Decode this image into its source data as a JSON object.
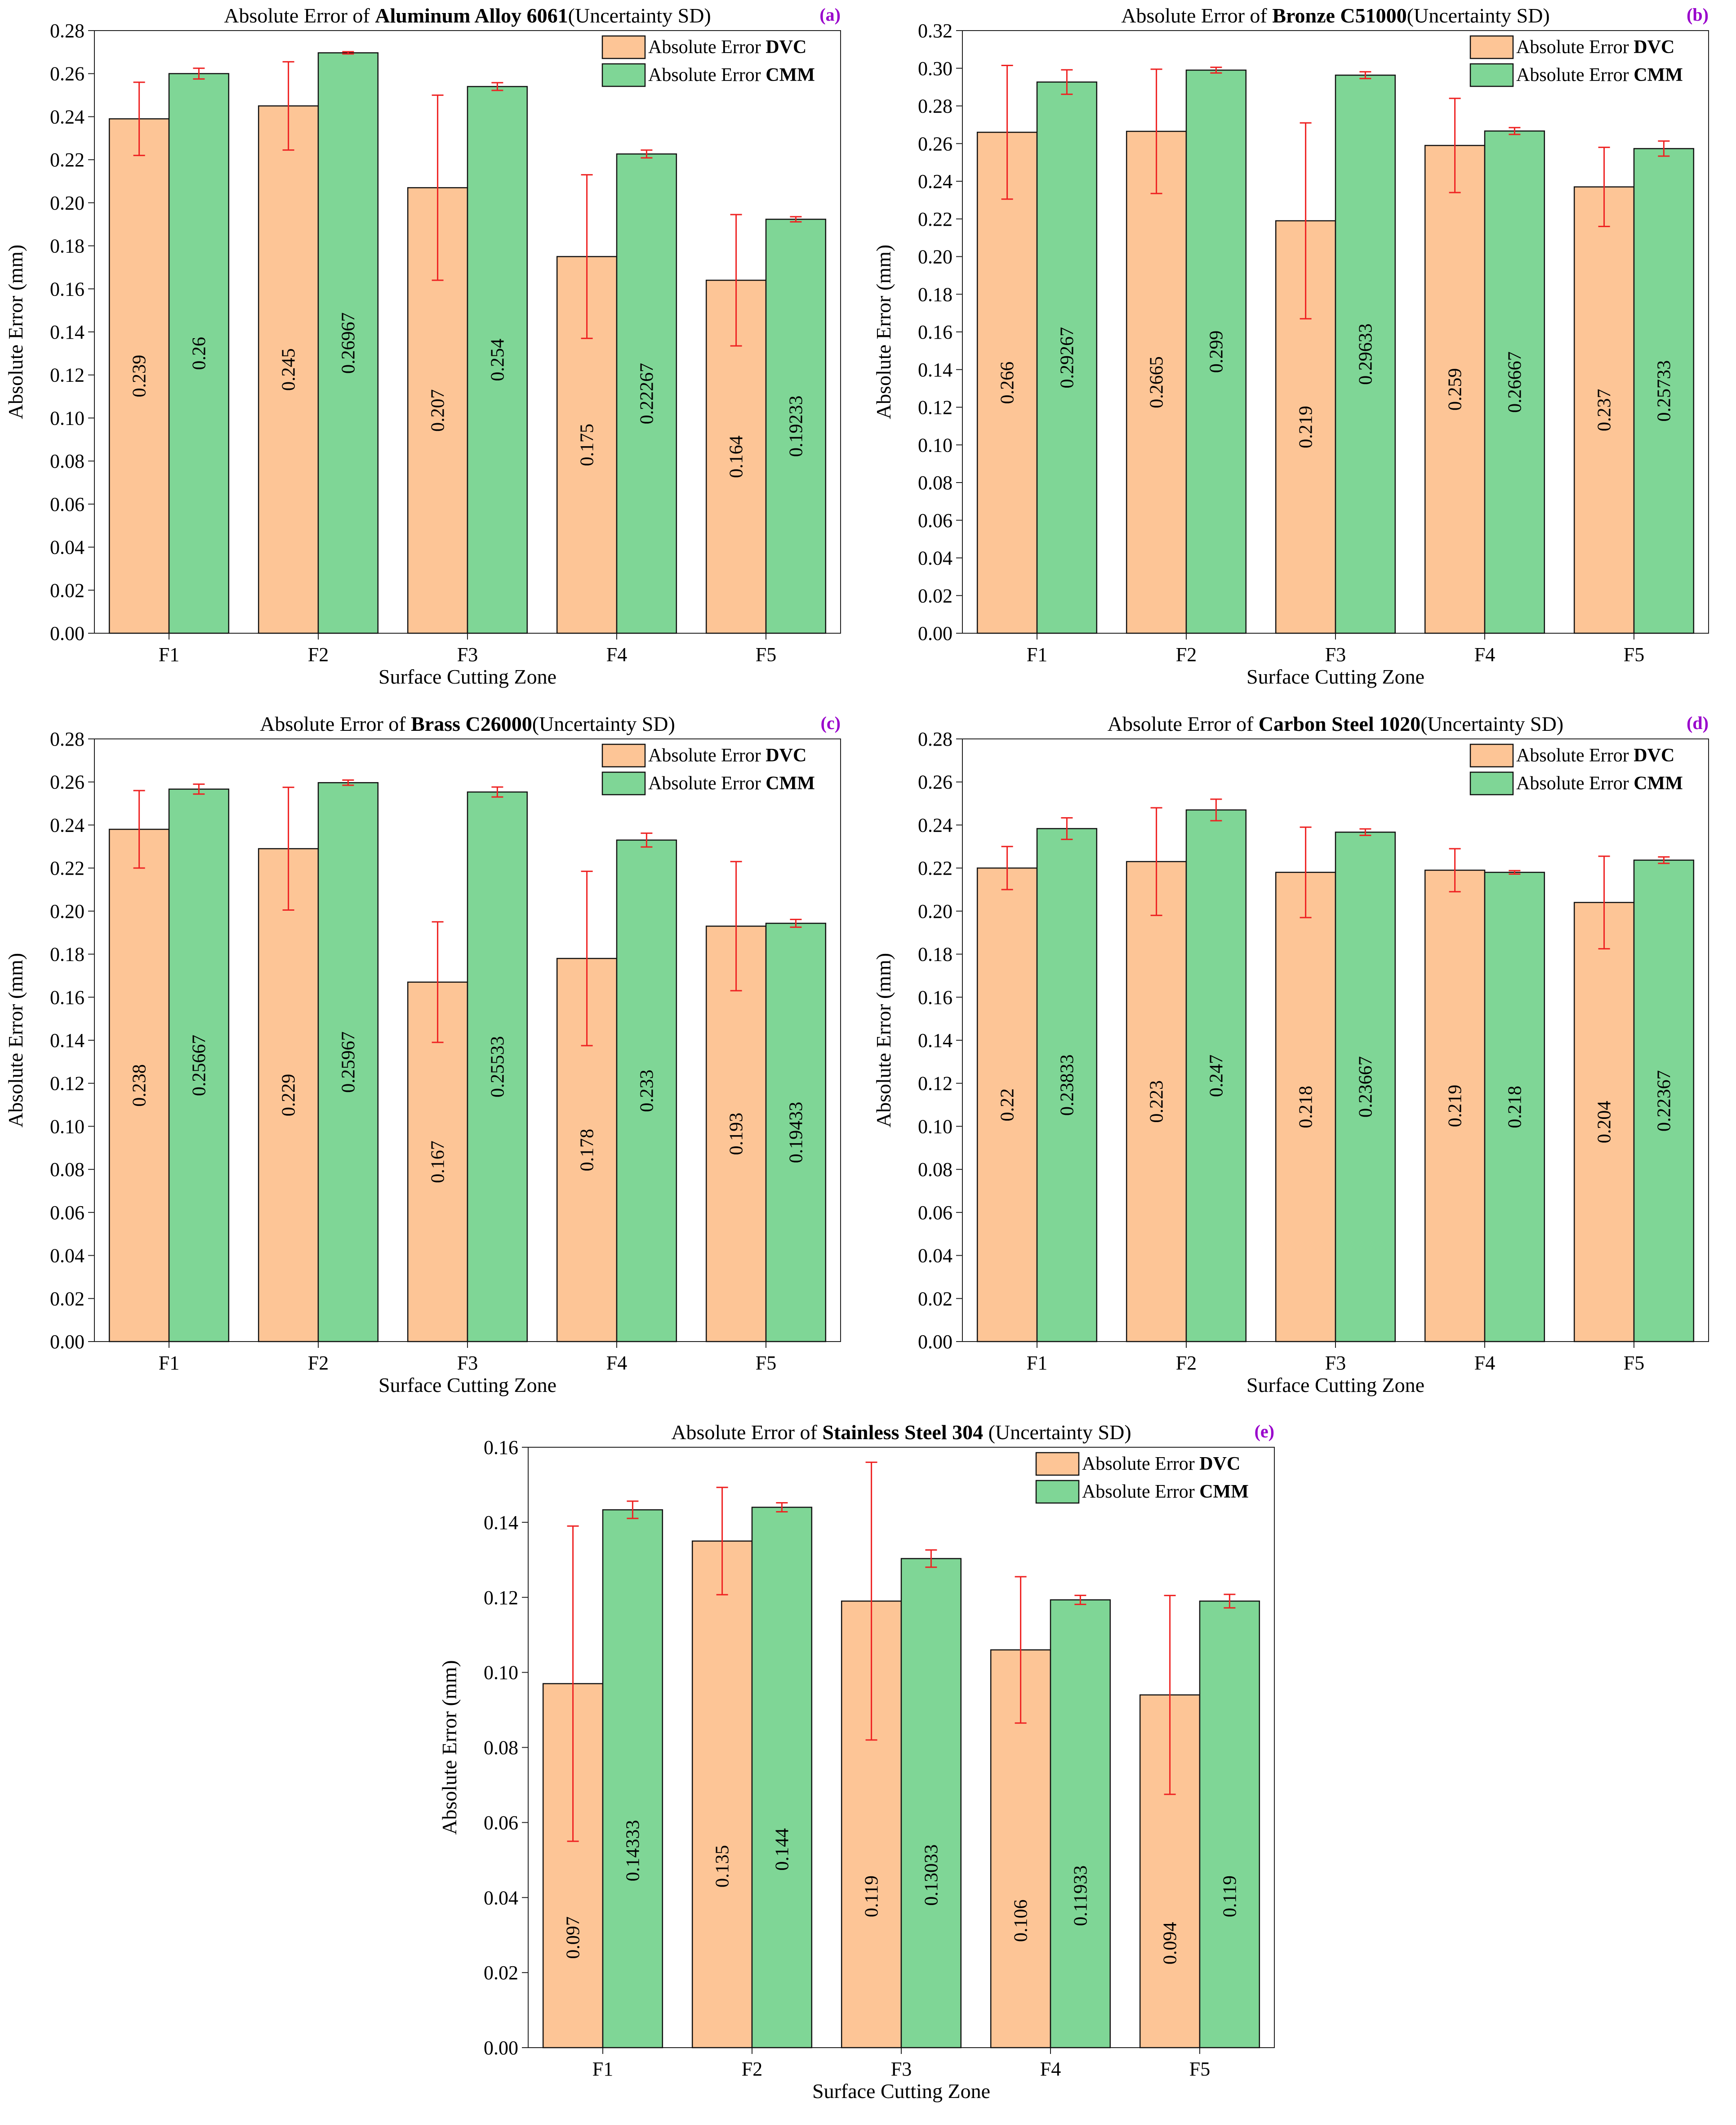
{
  "legend_prefix": "Absolute Error",
  "x_categories": [
    "F1",
    "F2",
    "F3",
    "F4",
    "F5"
  ],
  "colors": {
    "dvc_fill": "#fdc596",
    "cmm_fill": "#7fd696",
    "error_bar": "#ee2222",
    "panel_tag": "#9900cc",
    "axis": "#222222"
  },
  "chart_data": [
    {
      "type": "bar",
      "panel_tag": "(a)",
      "title_prefix": "Absolute Error of ",
      "title_bold": "Aluminum Alloy 6061",
      "title_suffix": "(Uncertainty SD)",
      "xlabel": "Surface Cutting Zone",
      "ylabel": "Absolute Error (mm)",
      "ylim": [
        0,
        0.28
      ],
      "ytick_step": 0.02,
      "grid": false,
      "legend_position": "top-right",
      "categories": [
        "F1",
        "F2",
        "F3",
        "F4",
        "F5"
      ],
      "series": [
        {
          "name": "DVC",
          "values": [
            0.239,
            0.245,
            0.207,
            0.175,
            0.164
          ],
          "labels": [
            "0.239",
            "0.245",
            "0.207",
            "0.175",
            "0.164"
          ],
          "err": [
            0.017,
            0.0205,
            0.043,
            0.038,
            0.0305
          ]
        },
        {
          "name": "CMM",
          "values": [
            0.26,
            0.26967,
            0.254,
            0.22267,
            0.19233
          ],
          "labels": [
            "0.26",
            "0.26967",
            "0.254",
            "0.22267",
            "0.19233"
          ],
          "err": [
            0.0025,
            0.0005,
            0.0018,
            0.0018,
            0.0012
          ]
        }
      ]
    },
    {
      "type": "bar",
      "panel_tag": "(b)",
      "title_prefix": "Absolute Error of ",
      "title_bold": "Bronze C51000",
      "title_suffix": "(Uncertainty SD)",
      "xlabel": "Surface Cutting Zone",
      "ylabel": "Absolute Error (mm)",
      "ylim": [
        0,
        0.32
      ],
      "ytick_step": 0.02,
      "grid": false,
      "legend_position": "top-right",
      "categories": [
        "F1",
        "F2",
        "F3",
        "F4",
        "F5"
      ],
      "series": [
        {
          "name": "DVC",
          "values": [
            0.266,
            0.2665,
            0.219,
            0.259,
            0.237
          ],
          "labels": [
            "0.266",
            "0.2665",
            "0.219",
            "0.259",
            "0.237"
          ],
          "err": [
            0.0355,
            0.033,
            0.052,
            0.025,
            0.021
          ]
        },
        {
          "name": "CMM",
          "values": [
            0.29267,
            0.299,
            0.29633,
            0.26667,
            0.25733
          ],
          "labels": [
            "0.29267",
            "0.299",
            "0.29633",
            "0.26667",
            "0.25733"
          ],
          "err": [
            0.0065,
            0.0015,
            0.0018,
            0.0018,
            0.004
          ]
        }
      ]
    },
    {
      "type": "bar",
      "panel_tag": "(c)",
      "title_prefix": "Absolute Error of ",
      "title_bold": "Brass C26000",
      "title_suffix": "(Uncertainty SD)",
      "xlabel": "Surface Cutting Zone",
      "ylabel": "Absolute Error (mm)",
      "ylim": [
        0,
        0.28
      ],
      "ytick_step": 0.02,
      "grid": false,
      "legend_position": "top-right",
      "categories": [
        "F1",
        "F2",
        "F3",
        "F4",
        "F5"
      ],
      "series": [
        {
          "name": "DVC",
          "values": [
            0.238,
            0.229,
            0.167,
            0.178,
            0.193
          ],
          "labels": [
            "0.238",
            "0.229",
            "0.167",
            "0.178",
            "0.193"
          ],
          "err": [
            0.018,
            0.0285,
            0.028,
            0.0405,
            0.03
          ]
        },
        {
          "name": "CMM",
          "values": [
            0.25667,
            0.25967,
            0.25533,
            0.233,
            0.19433
          ],
          "labels": [
            "0.25667",
            "0.25967",
            "0.25533",
            "0.233",
            "0.19433"
          ],
          "err": [
            0.0023,
            0.0012,
            0.0023,
            0.0032,
            0.0018
          ]
        }
      ]
    },
    {
      "type": "bar",
      "panel_tag": "(d)",
      "title_prefix": "Absolute Error of ",
      "title_bold": "Carbon Steel 1020",
      "title_suffix": "(Uncertainty SD)",
      "xlabel": "Surface Cutting Zone",
      "ylabel": "Absolute Error (mm)",
      "ylim": [
        0,
        0.28
      ],
      "ytick_step": 0.02,
      "grid": false,
      "legend_position": "top-right",
      "categories": [
        "F1",
        "F2",
        "F3",
        "F4",
        "F5"
      ],
      "series": [
        {
          "name": "DVC",
          "values": [
            0.22,
            0.223,
            0.218,
            0.219,
            0.204
          ],
          "labels": [
            "0.22",
            "0.223",
            "0.218",
            "0.219",
            "0.204"
          ],
          "err": [
            0.01,
            0.025,
            0.021,
            0.01,
            0.0215
          ]
        },
        {
          "name": "CMM",
          "values": [
            0.23833,
            0.247,
            0.23667,
            0.218,
            0.22367
          ],
          "labels": [
            "0.23833",
            "0.247",
            "0.23667",
            "0.218",
            "0.22367"
          ],
          "err": [
            0.005,
            0.005,
            0.0015,
            0.0008,
            0.0015
          ]
        }
      ]
    },
    {
      "type": "bar",
      "panel_tag": "(e)",
      "title_prefix": "Absolute Error of ",
      "title_bold": "Stainless Steel 304",
      "title_suffix": " (Uncertainty SD)",
      "xlabel": "Surface Cutting Zone",
      "ylabel": "Absolute Error (mm)",
      "ylim": [
        0,
        0.16
      ],
      "ytick_step": 0.02,
      "grid": false,
      "legend_position": "top-right",
      "categories": [
        "F1",
        "F2",
        "F3",
        "F4",
        "F5"
      ],
      "series": [
        {
          "name": "DVC",
          "values": [
            0.097,
            0.135,
            0.119,
            0.106,
            0.094
          ],
          "labels": [
            "0.097",
            "0.135",
            "0.119",
            "0.106",
            "0.094"
          ],
          "err": [
            0.042,
            0.0143,
            0.037,
            0.0195,
            0.0265
          ]
        },
        {
          "name": "CMM",
          "values": [
            0.14333,
            0.144,
            0.13033,
            0.11933,
            0.119
          ],
          "labels": [
            "0.14333",
            "0.144",
            "0.13033",
            "0.11933",
            "0.119"
          ],
          "err": [
            0.0023,
            0.0012,
            0.0023,
            0.0012,
            0.0018
          ]
        }
      ]
    }
  ]
}
